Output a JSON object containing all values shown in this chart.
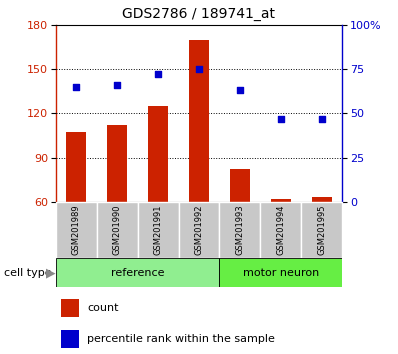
{
  "title": "GDS2786 / 189741_at",
  "samples": [
    "GSM201989",
    "GSM201990",
    "GSM201991",
    "GSM201992",
    "GSM201993",
    "GSM201994",
    "GSM201995"
  ],
  "count_values": [
    107,
    112,
    125,
    170,
    82,
    62,
    63
  ],
  "percentile_values": [
    65,
    66,
    72,
    75,
    63,
    47,
    47
  ],
  "bar_color": "#CC2200",
  "dot_color": "#0000CC",
  "ylim_left": [
    60,
    180
  ],
  "ylim_right": [
    0,
    100
  ],
  "yticks_left": [
    60,
    90,
    120,
    150,
    180
  ],
  "yticks_right": [
    0,
    25,
    50,
    75,
    100
  ],
  "sample_box_color": "#C8C8C8",
  "ref_color": "#90EE90",
  "motor_color": "#66EE44",
  "title_fontsize": 10,
  "tick_fontsize": 8,
  "label_fontsize": 8,
  "sample_fontsize": 6,
  "group_fontsize": 8,
  "legend_fontsize": 8
}
